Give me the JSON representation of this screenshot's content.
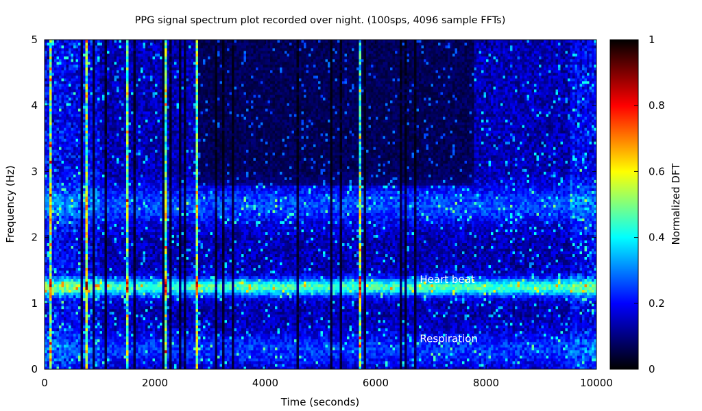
{
  "chart_data": {
    "type": "heatmap",
    "title": "PPG signal spectrum plot recorded over night. (100sps, 4096 sample FFTs)",
    "xlabel": "Time (seconds)",
    "ylabel": "Frequency (Hz)",
    "xlim": [
      0,
      10000
    ],
    "ylim": [
      0,
      5
    ],
    "x_ticks": [
      "0",
      "2000",
      "4000",
      "6000",
      "8000",
      "10000"
    ],
    "y_ticks": [
      "0",
      "1",
      "2",
      "3",
      "4",
      "5"
    ],
    "colorbar": {
      "label": "Normalized DFT",
      "range": [
        0,
        1
      ],
      "ticks": [
        "0",
        "0.2",
        "0.4",
        "0.6",
        "0.8",
        "1"
      ],
      "colormap": [
        "#000000",
        "#00007f",
        "#0000ff",
        "#007fff",
        "#00ffff",
        "#7fff7f",
        "#ffff00",
        "#ff7f00",
        "#ff0000",
        "#7f0000",
        "#000000"
      ]
    },
    "annotations": [
      {
        "text": "Heart beat",
        "x": 6800,
        "y": 1.35
      },
      {
        "text": "Respiration",
        "x": 6800,
        "y": 0.45
      }
    ],
    "bands": [
      {
        "name": "heart beat",
        "freq_hz": 1.25
      },
      {
        "name": "respiration",
        "freq_hz": 0.3
      }
    ],
    "grid": false
  }
}
